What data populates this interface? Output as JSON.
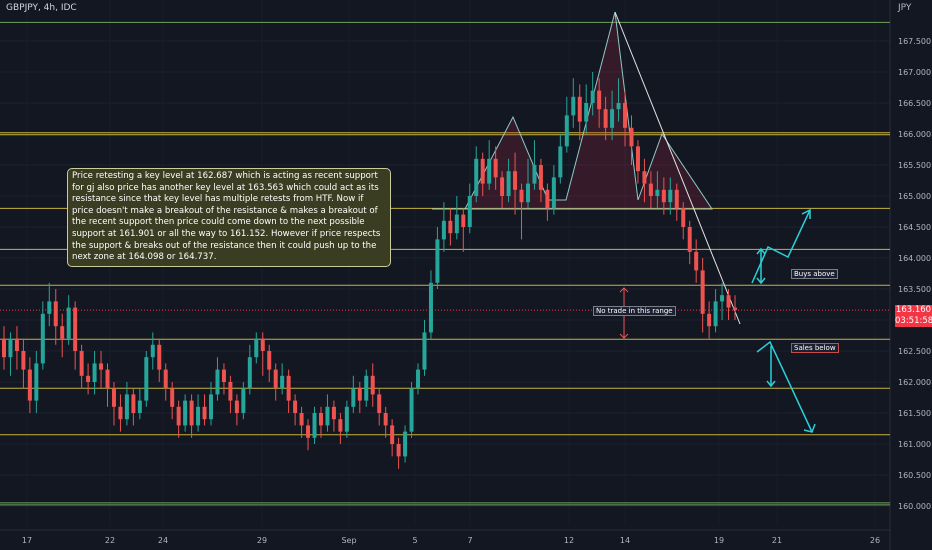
{
  "header": {
    "symbol": "GBPJPY, 4h, IDC",
    "currency": "JPY"
  },
  "price_tag": {
    "price": "163.160",
    "countdown": "03:51:58"
  },
  "annotations": {
    "note": "Price retesting a key level at 162.687 which is acting as recent support for gj also price has another key level at 163.563 which could act as its resistance since that key level has multiple retests from HTF. Now if price doesn't make a breakout of the resistance & makes a breakout of the recent support then price could come down to the next possible support at 161.901 or all the way to 161.152. However if price respects the support & breaks out of the resistance then it could push up to the next zone at 164.098 or 164.737.",
    "no_trade": "No trade in this range",
    "buys": "Buys above",
    "sales": "Sales below"
  },
  "colors": {
    "background": "#131722",
    "up": "#26a69a",
    "down": "#ef5350",
    "level": "#c8b43c",
    "pattern": "#8fc9c7",
    "arrow": "#2ad0d8"
  },
  "chart_data": {
    "type": "candlestick",
    "symbol": "GBPJPY",
    "timeframe": "4h",
    "y_axis": {
      "ticks": [
        167.5,
        167.0,
        166.5,
        166.0,
        165.5,
        165.0,
        164.5,
        164.0,
        163.5,
        163.0,
        162.5,
        162.0,
        161.5,
        161.0,
        160.5,
        160.0
      ]
    },
    "x_axis": {
      "tick_labels": [
        "17",
        "22",
        "24",
        "29",
        "Sep",
        "5",
        "7",
        "12",
        "14",
        "19",
        "21",
        "26"
      ]
    },
    "levels": [
      167.8,
      166.02,
      164.8,
      164.14,
      163.56,
      162.69,
      161.9,
      161.15,
      160.05
    ],
    "last_price": 163.16,
    "candles": [
      [
        162.7,
        162.4,
        162.9,
        162.2
      ],
      [
        162.4,
        162.7,
        162.8,
        162.1
      ],
      [
        162.7,
        162.5,
        162.9,
        162.2
      ],
      [
        162.5,
        162.2,
        162.7,
        161.9
      ],
      [
        162.2,
        161.7,
        162.4,
        161.5
      ],
      [
        161.7,
        162.3,
        162.5,
        161.5
      ],
      [
        162.3,
        163.1,
        163.3,
        162.2
      ],
      [
        163.1,
        163.3,
        163.6,
        162.9
      ],
      [
        163.3,
        162.9,
        163.5,
        162.6
      ],
      [
        162.9,
        162.7,
        163.1,
        162.4
      ],
      [
        162.7,
        163.2,
        163.4,
        162.6
      ],
      [
        163.2,
        162.5,
        163.3,
        162.2
      ],
      [
        162.5,
        162.1,
        162.6,
        161.9
      ],
      [
        162.1,
        162.0,
        162.3,
        161.8
      ],
      [
        162.0,
        162.3,
        162.5,
        161.8
      ],
      [
        162.3,
        162.2,
        162.5,
        161.9
      ],
      [
        162.2,
        161.9,
        162.3,
        161.6
      ],
      [
        161.9,
        161.6,
        162.0,
        161.3
      ],
      [
        161.6,
        161.4,
        161.8,
        161.2
      ],
      [
        161.4,
        161.8,
        162.0,
        161.3
      ],
      [
        161.8,
        161.5,
        161.9,
        161.3
      ],
      [
        161.5,
        161.7,
        161.9,
        161.4
      ],
      [
        161.7,
        162.4,
        162.5,
        161.6
      ],
      [
        162.4,
        162.6,
        162.8,
        162.2
      ],
      [
        162.6,
        162.2,
        162.7,
        162.0
      ],
      [
        162.2,
        161.9,
        162.3,
        161.7
      ],
      [
        161.9,
        161.6,
        162.0,
        161.4
      ],
      [
        161.6,
        161.3,
        161.7,
        161.1
      ],
      [
        161.3,
        161.7,
        161.8,
        161.2
      ],
      [
        161.7,
        161.3,
        161.8,
        161.1
      ],
      [
        161.3,
        161.6,
        161.8,
        161.2
      ],
      [
        161.6,
        161.4,
        161.8,
        161.3
      ],
      [
        161.4,
        161.8,
        162.0,
        161.3
      ],
      [
        161.8,
        162.2,
        162.4,
        161.7
      ],
      [
        162.2,
        162.0,
        162.3,
        161.8
      ],
      [
        162.0,
        161.7,
        162.1,
        161.5
      ],
      [
        161.7,
        161.5,
        161.8,
        161.3
      ],
      [
        161.5,
        161.9,
        162.0,
        161.4
      ],
      [
        161.9,
        162.4,
        162.6,
        161.8
      ],
      [
        162.4,
        162.7,
        162.8,
        162.3
      ],
      [
        162.7,
        162.5,
        162.8,
        162.1
      ],
      [
        162.5,
        162.2,
        162.6,
        162.0
      ],
      [
        162.2,
        161.9,
        162.3,
        161.7
      ],
      [
        161.9,
        162.1,
        162.3,
        161.8
      ],
      [
        162.1,
        161.7,
        162.2,
        161.5
      ],
      [
        161.7,
        161.5,
        161.8,
        161.3
      ],
      [
        161.5,
        161.3,
        161.6,
        161.1
      ],
      [
        161.3,
        161.1,
        161.4,
        160.9
      ],
      [
        161.1,
        161.5,
        161.6,
        161.0
      ],
      [
        161.5,
        161.3,
        161.6,
        161.1
      ],
      [
        161.3,
        161.6,
        161.8,
        161.2
      ],
      [
        161.6,
        161.4,
        161.7,
        161.2
      ],
      [
        161.4,
        161.2,
        161.5,
        161.0
      ],
      [
        161.2,
        161.6,
        161.7,
        161.1
      ],
      [
        161.6,
        161.9,
        162.1,
        161.5
      ],
      [
        161.9,
        161.7,
        162.0,
        161.5
      ],
      [
        161.7,
        162.1,
        162.2,
        161.6
      ],
      [
        162.1,
        161.8,
        162.3,
        161.6
      ],
      [
        161.8,
        161.5,
        161.9,
        161.3
      ],
      [
        161.5,
        161.3,
        161.6,
        161.1
      ],
      [
        161.3,
        161.0,
        161.4,
        160.8
      ],
      [
        161.0,
        160.8,
        161.1,
        160.6
      ],
      [
        160.8,
        161.2,
        161.3,
        160.7
      ],
      [
        161.2,
        161.9,
        162.0,
        161.1
      ],
      [
        161.9,
        162.2,
        162.3,
        161.8
      ],
      [
        162.2,
        162.8,
        163.0,
        162.1
      ],
      [
        162.8,
        163.6,
        163.8,
        162.7
      ],
      [
        163.6,
        164.3,
        164.5,
        163.5
      ],
      [
        164.3,
        164.6,
        164.9,
        164.1
      ],
      [
        164.6,
        164.4,
        164.8,
        164.2
      ],
      [
        164.4,
        164.7,
        165.0,
        164.3
      ],
      [
        164.7,
        164.5,
        164.8,
        164.1
      ],
      [
        164.5,
        165.0,
        165.2,
        164.4
      ],
      [
        165.0,
        165.6,
        165.8,
        164.9
      ],
      [
        165.6,
        165.2,
        165.7,
        165.0
      ],
      [
        165.2,
        165.6,
        165.9,
        165.1
      ],
      [
        165.6,
        165.3,
        165.8,
        165.1
      ],
      [
        165.3,
        165.0,
        165.4,
        164.8
      ],
      [
        165.0,
        165.4,
        165.6,
        164.9
      ],
      [
        165.4,
        165.1,
        165.7,
        164.7
      ],
      [
        165.1,
        164.9,
        165.2,
        164.3
      ],
      [
        164.9,
        165.2,
        165.6,
        164.8
      ],
      [
        165.2,
        165.5,
        165.9,
        165.1
      ],
      [
        165.5,
        165.1,
        165.6,
        164.9
      ],
      [
        165.1,
        164.8,
        165.2,
        164.6
      ],
      [
        164.8,
        165.3,
        165.5,
        164.7
      ],
      [
        165.3,
        165.8,
        166.0,
        165.2
      ],
      [
        165.8,
        166.3,
        166.6,
        165.7
      ],
      [
        166.3,
        166.6,
        166.9,
        166.1
      ],
      [
        166.6,
        166.2,
        166.8,
        165.9
      ],
      [
        166.2,
        166.5,
        166.8,
        166.0
      ],
      [
        166.5,
        166.7,
        167.0,
        166.3
      ],
      [
        166.7,
        166.4,
        166.9,
        166.1
      ],
      [
        166.4,
        166.1,
        166.6,
        165.9
      ],
      [
        166.1,
        166.4,
        166.7,
        165.9
      ],
      [
        166.4,
        166.5,
        166.9,
        166.2
      ],
      [
        166.5,
        166.1,
        166.7,
        165.8
      ],
      [
        166.1,
        165.8,
        166.3,
        165.5
      ],
      [
        165.8,
        165.4,
        165.9,
        165.2
      ],
      [
        165.4,
        165.2,
        165.6,
        164.9
      ],
      [
        165.2,
        165.0,
        165.4,
        164.8
      ],
      [
        165.0,
        165.1,
        165.4,
        164.8
      ],
      [
        165.1,
        164.9,
        165.3,
        164.7
      ],
      [
        164.9,
        165.1,
        165.3,
        164.7
      ],
      [
        165.1,
        164.8,
        165.2,
        164.6
      ],
      [
        164.8,
        164.5,
        164.9,
        164.3
      ],
      [
        164.5,
        164.1,
        164.6,
        163.9
      ],
      [
        164.1,
        163.8,
        164.3,
        163.6
      ],
      [
        163.8,
        163.1,
        164.0,
        162.8
      ],
      [
        163.1,
        162.9,
        163.3,
        162.7
      ],
      [
        162.9,
        163.3,
        163.5,
        162.8
      ],
      [
        163.3,
        163.4,
        163.6,
        163.0
      ],
      [
        163.4,
        163.2,
        163.5,
        163.0
      ],
      [
        163.2,
        163.16,
        163.4,
        163.0
      ]
    ]
  }
}
